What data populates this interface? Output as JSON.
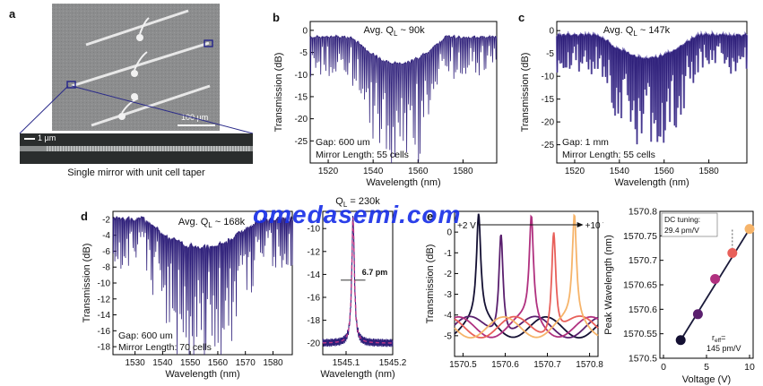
{
  "panel_letters": {
    "a": "a",
    "b": "b",
    "c": "c",
    "d": "d",
    "e": "e"
  },
  "panel_a": {
    "scale_top": "100 µm",
    "scale_bottom": "1 µm",
    "caption": "Single mirror with unit cell taper"
  },
  "watermark": "omedasemi.com",
  "colors": {
    "spectrum": "#2e1f7a",
    "spectrum_light": "#8a80c0",
    "fit": "#c03a8a"
  },
  "chart_data": [
    {
      "id": "b",
      "type": "line",
      "title": "Avg. QL ~ 90k",
      "title_main": "Avg. Q",
      "title_sub": "L",
      "title_rest": " ~ 90k",
      "xlabel": "Wavelength (nm)",
      "ylabel": "Transmission (dB)",
      "xlim": [
        1512,
        1595
      ],
      "ylim": [
        -30,
        2
      ],
      "xticks": [
        1520,
        1540,
        1560,
        1580
      ],
      "yticks": [
        0,
        -5,
        -10,
        -15,
        -20,
        -25
      ],
      "annotations": [
        "Gap: 600 um",
        "Mirror Length: 55 cells"
      ],
      "stopband": [
        1530,
        1572
      ],
      "min_dip": -28
    },
    {
      "id": "c",
      "type": "line",
      "title": "Avg. QL ~ 147k",
      "title_main": "Avg. Q",
      "title_sub": "L",
      "title_rest": " ~ 147k",
      "xlabel": "Wavelength (nm)",
      "ylabel": "Transmission (dB)",
      "xlim": [
        1512,
        1597
      ],
      "ylim": [
        -29,
        2
      ],
      "xticks": [
        1520,
        1540,
        1560,
        1580
      ],
      "yticks": [
        0,
        -5,
        -10,
        -15,
        -20,
        -25
      ],
      "annotations": [
        "Gap: 1 mm",
        "Mirror Length: 55 cells"
      ],
      "stopband": [
        1530,
        1575
      ],
      "min_dip": -24
    },
    {
      "id": "d",
      "type": "line",
      "title": "Avg. QL ~ 168k",
      "title_main": "Avg. Q",
      "title_sub": "L",
      "title_rest": " ~ 168k",
      "xlabel": "Wavelength (nm)",
      "ylabel": "Transmission (dB)",
      "xlim": [
        1522,
        1587
      ],
      "ylim": [
        -19,
        -1
      ],
      "xticks": [
        1530,
        1540,
        1550,
        1560,
        1570,
        1580
      ],
      "yticks": [
        -2,
        -4,
        -6,
        -8,
        -10,
        -12,
        -14,
        -16,
        -18
      ],
      "annotations": [
        "Gap: 600 um",
        "Mirror Length: 70 cells"
      ],
      "stopband": [
        1533,
        1575
      ],
      "min_dip": -18
    },
    {
      "id": "d-inset",
      "type": "line",
      "title": "QL = 230k",
      "title_main": "Q",
      "title_sub": "L",
      "title_rest": " = 230k",
      "xlabel": "Wavelength (nm)",
      "ylabel": "",
      "xlim": [
        1545.05,
        1545.2
      ],
      "ylim": [
        -21,
        -8.5
      ],
      "xticks": [
        1545.1,
        1545.2
      ],
      "yticks": [
        -10,
        -12,
        -14,
        -16,
        -18,
        -20
      ],
      "annotations": [
        "6.7 pm"
      ],
      "resonance_center": 1545.115,
      "fwhm_pm": 6.7,
      "series": [
        {
          "name": "",
          "color": "#2e1f7a"
        },
        {
          "name": "",
          "color": "#c03a8a",
          "dashed": true
        }
      ]
    },
    {
      "id": "e",
      "type": "line",
      "title": "",
      "xlabel": "",
      "ylabel": "Transmission (dB)",
      "xlim": [
        1570.48,
        1570.82
      ],
      "ylim": [
        -6,
        1
      ],
      "xticks": [
        1570.5,
        1570.6,
        1570.7,
        1570.8
      ],
      "yticks": [
        0,
        -1,
        -2,
        -3,
        -4,
        -5
      ],
      "annotations": [
        "+2 V",
        "+10 V"
      ],
      "series": [
        {
          "name": "",
          "center": 1570.537,
          "color": "#141033"
        },
        {
          "name": "",
          "center": 1570.59,
          "color": "#5a1f6e"
        },
        {
          "name": "",
          "center": 1570.662,
          "color": "#b0307f"
        },
        {
          "name": "",
          "center": 1570.715,
          "color": "#e8605a"
        },
        {
          "name": "",
          "center": 1570.764,
          "color": "#f6b46a"
        }
      ]
    },
    {
      "id": "e-right",
      "type": "scatter",
      "title": "",
      "xlabel": "Voltage (V)",
      "ylabel": "Peak Wavelength (nm)",
      "xlim": [
        0,
        10
      ],
      "ylim": [
        1570.5,
        1570.8
      ],
      "xticks": [
        0,
        5,
        10
      ],
      "yticks": [
        1570.8,
        1570.75,
        1570.7,
        1570.65,
        1570.6,
        1570.55,
        1570.5
      ],
      "annotations": [
        "DC tuning:",
        "29.4 pm/V",
        "r",
        "eff",
        "=",
        "145 pm/V"
      ],
      "points": [
        {
          "x": 2,
          "y": 1570.537,
          "color": "#141033"
        },
        {
          "x": 4,
          "y": 1570.59,
          "color": "#5a1f6e"
        },
        {
          "x": 6,
          "y": 1570.662,
          "color": "#b0307f"
        },
        {
          "x": 8,
          "y": 1570.715,
          "color": "#e8605a"
        },
        {
          "x": 10,
          "y": 1570.764,
          "color": "#f6b46a"
        }
      ]
    }
  ]
}
